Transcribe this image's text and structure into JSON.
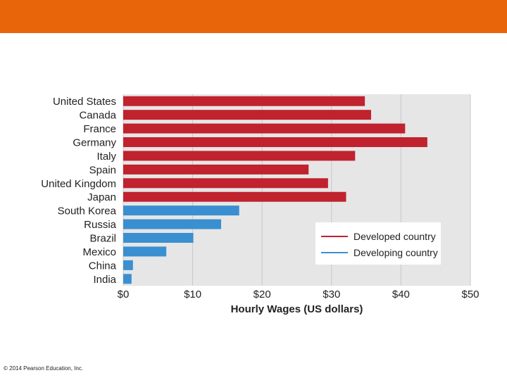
{
  "slide": {
    "band_color": "#e8650a",
    "copyright": "© 2014 Pearson Education, Inc."
  },
  "chart_data": {
    "type": "bar",
    "orientation": "horizontal",
    "title": "",
    "xlabel": "Hourly Wages (US dollars)",
    "ylabel": "",
    "xlim": [
      0,
      50
    ],
    "x_ticks": [
      "$0",
      "$10",
      "$20",
      "$30",
      "$40",
      "$50"
    ],
    "x_tick_values": [
      0,
      10,
      20,
      30,
      40,
      50
    ],
    "grid": true,
    "legend_position": "bottom-right",
    "categories": [
      "United States",
      "Canada",
      "France",
      "Germany",
      "Italy",
      "Spain",
      "United Kingdom",
      "Japan",
      "South Korea",
      "Russia",
      "Brazil",
      "Mexico",
      "China",
      "India"
    ],
    "values": [
      34.8,
      35.7,
      40.6,
      43.8,
      33.4,
      26.7,
      29.5,
      32.1,
      16.7,
      14.1,
      10.1,
      6.2,
      1.4,
      1.2
    ],
    "groups": [
      "Developed country",
      "Developed country",
      "Developed country",
      "Developed country",
      "Developed country",
      "Developed country",
      "Developed country",
      "Developed country",
      "Developing country",
      "Developing country",
      "Developing country",
      "Developing country",
      "Developing country",
      "Developing country"
    ],
    "legend": [
      {
        "label": "Developed country",
        "color": "#c0222e"
      },
      {
        "label": "Developing country",
        "color": "#3a8fd0"
      }
    ],
    "plot_background": "#e6e6e6"
  }
}
